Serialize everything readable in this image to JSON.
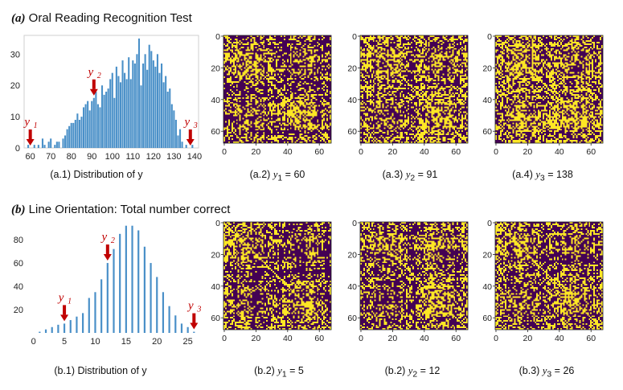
{
  "colors": {
    "bar": "#4a90c8",
    "arrow": "#c00000",
    "heat_low": "#440154",
    "heat_high": "#fde725"
  },
  "sections": [
    {
      "label": "(a)",
      "title": "Oral Reading Recognition Test"
    },
    {
      "label": "(b)",
      "title": "Line Orientation: Total number correct"
    }
  ],
  "captions": {
    "a1": {
      "prefix": "(a.1) Distribution of y"
    },
    "a2": {
      "prefix": "(a.2)",
      "var": "y",
      "sub": "1",
      "eq": "= 60"
    },
    "a3": {
      "prefix": "(a.3)",
      "var": "y",
      "sub": "2",
      "eq": "= 91"
    },
    "a4": {
      "prefix": "(a.4)",
      "var": "y",
      "sub": "3",
      "eq": "= 138"
    },
    "b1": {
      "prefix": "(b.1) Distribution of y"
    },
    "b2": {
      "prefix": "(b.2)",
      "var": "y",
      "sub": "1",
      "eq": "= 5"
    },
    "b3": {
      "prefix": "(b.2)",
      "var": "y",
      "sub": "2",
      "eq": "= 12"
    },
    "b4": {
      "prefix": "(b.3)",
      "var": "y",
      "sub": "3",
      "eq": "= 26"
    }
  },
  "chart_data": [
    {
      "id": "a1",
      "type": "bar",
      "title": "Distribution of y",
      "xlim": [
        57,
        142
      ],
      "ylim": [
        0,
        36
      ],
      "xticks": [
        60,
        70,
        80,
        90,
        100,
        110,
        120,
        130,
        140
      ],
      "yticks": [
        0,
        10,
        20,
        30
      ],
      "x": [
        59,
        62,
        64,
        66,
        67,
        69,
        70,
        72,
        73,
        74,
        76,
        77,
        78,
        79,
        80,
        81,
        82,
        83,
        84,
        85,
        86,
        87,
        88,
        89,
        90,
        91,
        92,
        93,
        94,
        95,
        96,
        97,
        98,
        99,
        100,
        101,
        102,
        103,
        104,
        105,
        106,
        107,
        108,
        109,
        110,
        111,
        112,
        113,
        114,
        115,
        116,
        117,
        118,
        119,
        120,
        121,
        122,
        123,
        124,
        125,
        126,
        127,
        128,
        129,
        130,
        131,
        132,
        133,
        134,
        136,
        139
      ],
      "values": [
        1,
        1,
        1,
        3,
        1,
        2,
        3,
        1,
        2,
        2,
        3,
        4,
        6,
        7,
        8,
        8,
        9,
        11,
        9,
        10,
        13,
        14,
        15,
        12,
        15,
        16,
        18,
        14,
        13,
        20,
        17,
        18,
        19,
        22,
        24,
        16,
        26,
        23,
        21,
        28,
        24,
        22,
        29,
        22,
        28,
        27,
        30,
        35,
        20,
        27,
        30,
        25,
        33,
        31,
        28,
        26,
        30,
        24,
        27,
        21,
        23,
        18,
        19,
        14,
        12,
        9,
        4,
        6,
        2,
        1,
        1
      ],
      "annotations": [
        {
          "var": "y",
          "sub": "1",
          "x": 60
        },
        {
          "var": "y",
          "sub": "2",
          "x": 91
        },
        {
          "var": "y",
          "sub": "3",
          "x": 138
        }
      ]
    },
    {
      "id": "b1",
      "type": "bar",
      "title": "Distribution of y",
      "xlim": [
        -1,
        27
      ],
      "ylim": [
        0,
        98
      ],
      "xticks": [
        0,
        5,
        10,
        15,
        20,
        25
      ],
      "yticks": [
        20,
        40,
        60,
        80
      ],
      "x": [
        1,
        2,
        3,
        4,
        5,
        6,
        7,
        8,
        9,
        10,
        11,
        12,
        13,
        14,
        15,
        16,
        17,
        18,
        19,
        20,
        21,
        22,
        23,
        24,
        25,
        26
      ],
      "values": [
        1,
        3,
        5,
        7,
        8,
        11,
        14,
        17,
        30,
        35,
        46,
        60,
        72,
        85,
        92,
        92,
        88,
        74,
        60,
        48,
        35,
        23,
        15,
        8,
        5,
        1
      ],
      "annotations": [
        {
          "var": "y",
          "sub": "1",
          "x": 5
        },
        {
          "var": "y",
          "sub": "2",
          "x": 12
        },
        {
          "var": "y",
          "sub": "3",
          "x": 26
        }
      ]
    },
    {
      "id": "a2",
      "type": "heatmap",
      "matrix_size": 68,
      "xticks": [
        0,
        20,
        40,
        60
      ],
      "yticks": [
        0,
        20,
        40,
        60
      ],
      "seed": 11,
      "density": 0.36
    },
    {
      "id": "a3",
      "type": "heatmap",
      "matrix_size": 68,
      "xticks": [
        0,
        20,
        40,
        60
      ],
      "yticks": [
        0,
        20,
        40,
        60
      ],
      "seed": 23,
      "density": 0.4
    },
    {
      "id": "a4",
      "type": "heatmap",
      "matrix_size": 68,
      "xticks": [
        0,
        20,
        40,
        60
      ],
      "yticks": [
        0,
        20,
        40,
        60
      ],
      "seed": 37,
      "density": 0.44
    },
    {
      "id": "b2",
      "type": "heatmap",
      "matrix_size": 68,
      "xticks": [
        0,
        20,
        40,
        60
      ],
      "yticks": [
        0,
        20,
        40,
        60
      ],
      "seed": 51,
      "density": 0.32
    },
    {
      "id": "b3",
      "type": "heatmap",
      "matrix_size": 68,
      "xticks": [
        0,
        20,
        40,
        60
      ],
      "yticks": [
        0,
        20,
        40,
        60
      ],
      "seed": 67,
      "density": 0.35
    },
    {
      "id": "b4",
      "type": "heatmap",
      "matrix_size": 68,
      "xticks": [
        0,
        20,
        40,
        60
      ],
      "yticks": [
        0,
        20,
        40,
        60
      ],
      "seed": 83,
      "density": 0.33
    }
  ]
}
